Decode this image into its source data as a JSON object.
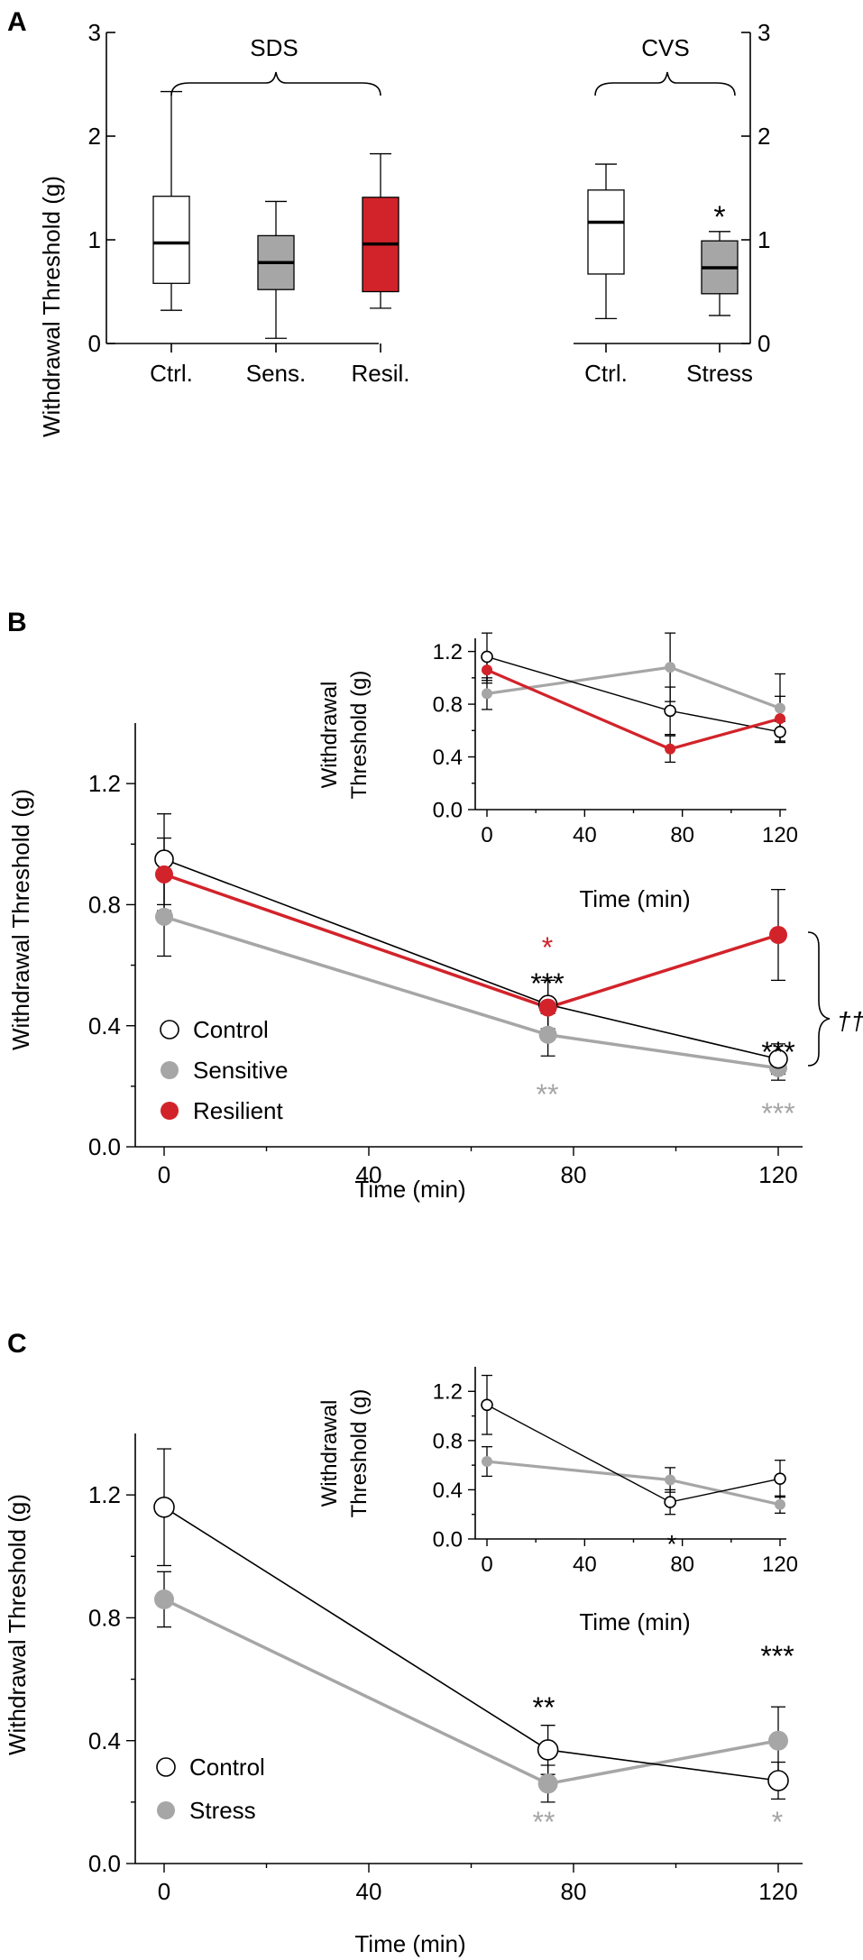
{
  "colors": {
    "black": "#000000",
    "gray": "#a6a6a6",
    "red": "#d2232a",
    "white": "#ffffff"
  },
  "chart_data": [
    {
      "panel": "A",
      "type": "box",
      "ylabel": "Withdrawal Threshold (g)",
      "ylim": [
        0,
        3
      ],
      "yticks": [
        0,
        1,
        2,
        3
      ],
      "groups": [
        {
          "name": "SDS",
          "boxes": [
            {
              "label": "Ctrl.",
              "min": 0.32,
              "q1": 0.58,
              "median": 0.97,
              "q3": 1.42,
              "max": 2.43,
              "fill": "white"
            },
            {
              "label": "Sens.",
              "min": 0.05,
              "q1": 0.52,
              "median": 0.78,
              "q3": 1.04,
              "max": 1.37,
              "fill": "gray"
            },
            {
              "label": "Resil.",
              "min": 0.34,
              "q1": 0.5,
              "median": 0.96,
              "q3": 1.41,
              "max": 1.83,
              "fill": "red"
            }
          ]
        },
        {
          "name": "CVS",
          "annotation": "*",
          "boxes": [
            {
              "label": "Ctrl.",
              "min": 0.24,
              "q1": 0.67,
              "median": 1.17,
              "q3": 1.48,
              "max": 1.73,
              "fill": "white"
            },
            {
              "label": "Stress",
              "min": 0.27,
              "q1": 0.48,
              "median": 0.73,
              "q3": 0.99,
              "max": 1.08,
              "fill": "gray"
            }
          ]
        }
      ]
    },
    {
      "panel": "B",
      "type": "line",
      "xlabel": "Time (min)",
      "ylabel": "Withdrawal Threshold (g)",
      "xlim": [
        0,
        120
      ],
      "ylim": [
        0,
        1.4
      ],
      "xticks": [
        0,
        40,
        80,
        120
      ],
      "yticks": [
        "0.0",
        "0.4",
        "0.8",
        "1.2"
      ],
      "x": [
        0,
        75,
        120
      ],
      "series": [
        {
          "name": "Control",
          "color": "white",
          "line": "black",
          "values": [
            0.95,
            0.47,
            0.29
          ],
          "err": [
            0.15,
            0.08,
            0.05
          ]
        },
        {
          "name": "Sensitive",
          "color": "gray",
          "line": "gray",
          "values": [
            0.76,
            0.37,
            0.26
          ],
          "err": [
            0.13,
            0.07,
            0.04
          ]
        },
        {
          "name": "Resilient",
          "color": "red",
          "line": "red",
          "values": [
            0.9,
            0.46,
            0.7
          ],
          "err": [
            0.12,
            0.09,
            0.15
          ]
        }
      ],
      "annotations": {
        "red_star_75": "*",
        "black_stars_75": "***",
        "gray_stars_75": "**",
        "black_stars_120": "***",
        "gray_stars_120": "***",
        "dagger": "††"
      },
      "inset": {
        "xlabel": "Time (min)",
        "ylabel_line1": "Withdrawal",
        "ylabel_line2": "Threshold (g)",
        "xlim": [
          0,
          120
        ],
        "ylim": [
          0,
          1.3
        ],
        "xticks": [
          0,
          40,
          80,
          120
        ],
        "yticks": [
          "0.0",
          "0.4",
          "0.8",
          "1.2"
        ],
        "x": [
          0,
          75,
          120
        ],
        "series": [
          {
            "name": "Control",
            "values": [
              1.16,
              0.75,
              0.59
            ],
            "err": [
              0.18,
              0.18,
              0.08
            ]
          },
          {
            "name": "Sensitive",
            "values": [
              0.88,
              1.08,
              0.77
            ],
            "err": [
              0.12,
              0.26,
              0.26
            ]
          },
          {
            "name": "Resilient",
            "values": [
              1.06,
              0.46,
              0.69
            ],
            "err": [
              0.1,
              0.1,
              0.17
            ]
          }
        ]
      }
    },
    {
      "panel": "C",
      "type": "line",
      "xlabel": "Time (min)",
      "ylabel": "Withdrawal Threshold (g)",
      "xlim": [
        0,
        120
      ],
      "ylim": [
        0,
        1.4
      ],
      "xticks": [
        0,
        40,
        80,
        120
      ],
      "yticks": [
        "0.0",
        "0.4",
        "0.8",
        "1.2"
      ],
      "x": [
        0,
        75,
        120
      ],
      "series": [
        {
          "name": "Control",
          "color": "white",
          "line": "black",
          "values": [
            1.16,
            0.37,
            0.27
          ],
          "err": [
            0.19,
            0.08,
            0.06
          ]
        },
        {
          "name": "Stress",
          "color": "gray",
          "line": "gray",
          "values": [
            0.86,
            0.26,
            0.4
          ],
          "err": [
            0.09,
            0.06,
            0.11
          ]
        }
      ],
      "annotations": {
        "black_stars_75": "**",
        "gray_stars_75": "**",
        "black_stars_120": "***",
        "gray_stars_120": "*"
      },
      "inset": {
        "xlabel": "Time (min)",
        "ylabel_line1": "Withdrawal",
        "ylabel_line2": "Threshold (g)",
        "xlim": [
          0,
          120
        ],
        "ylim": [
          0,
          1.4
        ],
        "xticks": [
          0,
          40,
          80,
          120
        ],
        "yticks": [
          "0.0",
          "0.4",
          "0.8",
          "1.2"
        ],
        "x": [
          0,
          75,
          120
        ],
        "series": [
          {
            "name": "Control",
            "values": [
              1.09,
              0.3,
              0.49
            ],
            "err": [
              0.24,
              0.1,
              0.15
            ]
          },
          {
            "name": "Stress",
            "values": [
              0.63,
              0.48,
              0.28
            ],
            "err": [
              0.12,
              0.1,
              0.07
            ]
          }
        ],
        "annotation": "*"
      }
    }
  ],
  "panel_labels": [
    "A",
    "B",
    "C"
  ]
}
